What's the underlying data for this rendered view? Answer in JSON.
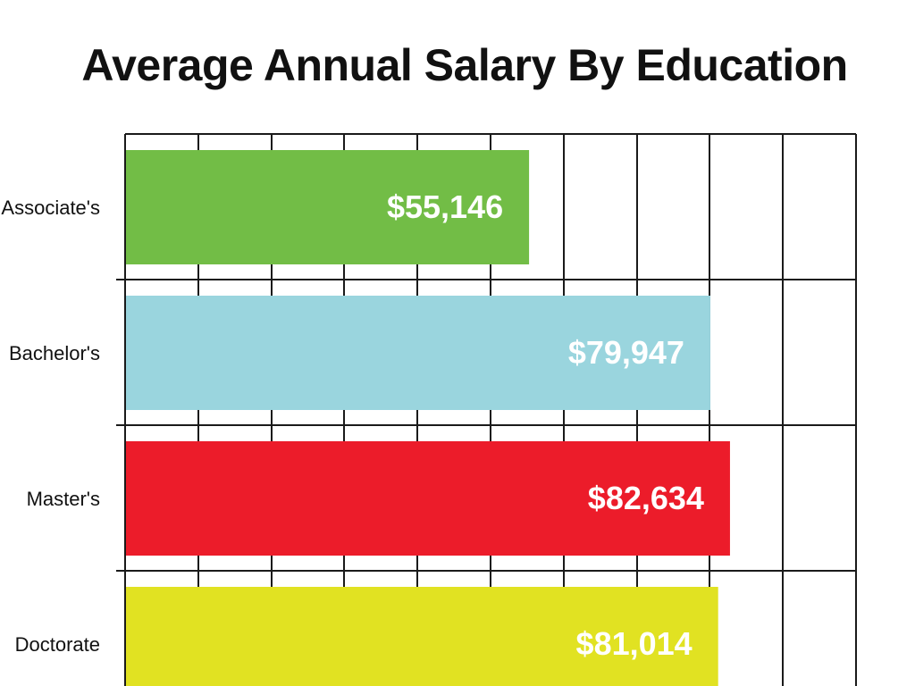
{
  "chart_data": {
    "type": "bar",
    "orientation": "horizontal",
    "title": "Average Annual Salary By Education",
    "categories": [
      "Associate's",
      "Bachelor's",
      "Master's",
      "Doctorate"
    ],
    "values": [
      55146,
      79947,
      82634,
      81014
    ],
    "value_labels": [
      "$55,146",
      "$79,947",
      "$82,634",
      "$81,014"
    ],
    "colors": [
      "#72bd46",
      "#9ad5de",
      "#ec1c2a",
      "#e1e222"
    ],
    "xlim": [
      0,
      100000
    ],
    "grid": true,
    "legend": "none",
    "xlabel": "",
    "ylabel": ""
  }
}
